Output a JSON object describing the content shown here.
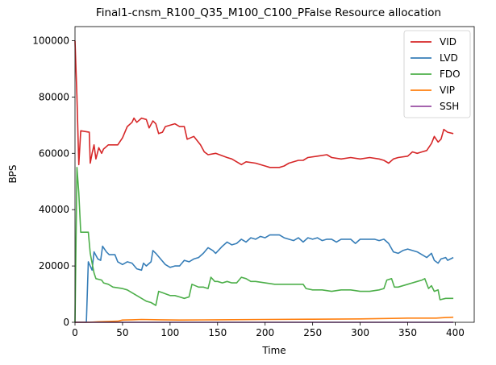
{
  "chart_data": {
    "type": "line",
    "title": "Final1-cnsm_R100_Q35_M100_C100_PFalse Resource allocation",
    "xlabel": "Time",
    "ylabel": "BPS",
    "xlim": [
      0,
      420
    ],
    "ylim": [
      0,
      105000
    ],
    "xticks": [
      0,
      50,
      100,
      150,
      200,
      250,
      300,
      350,
      400
    ],
    "yticks": [
      0,
      20000,
      40000,
      60000,
      80000,
      100000
    ],
    "grid": false,
    "legend_position": "top-right",
    "series": [
      {
        "name": "VID",
        "color": "#d62728",
        "points": [
          [
            0,
            100000
          ],
          [
            2,
            80000
          ],
          [
            4,
            56000
          ],
          [
            6,
            68000
          ],
          [
            15,
            67500
          ],
          [
            16,
            56500
          ],
          [
            18,
            60000
          ],
          [
            20,
            63000
          ],
          [
            22,
            58000
          ],
          [
            25,
            62000
          ],
          [
            28,
            60000
          ],
          [
            30,
            61500
          ],
          [
            35,
            63000
          ],
          [
            45,
            63000
          ],
          [
            50,
            65500
          ],
          [
            55,
            69500
          ],
          [
            60,
            71000
          ],
          [
            62,
            72500
          ],
          [
            65,
            71000
          ],
          [
            70,
            72500
          ],
          [
            75,
            72000
          ],
          [
            78,
            69000
          ],
          [
            82,
            71500
          ],
          [
            85,
            70500
          ],
          [
            88,
            67000
          ],
          [
            92,
            67500
          ],
          [
            95,
            69500
          ],
          [
            105,
            70500
          ],
          [
            110,
            69500
          ],
          [
            115,
            69500
          ],
          [
            118,
            65000
          ],
          [
            125,
            66000
          ],
          [
            132,
            63000
          ],
          [
            136,
            60500
          ],
          [
            140,
            59500
          ],
          [
            148,
            60000
          ],
          [
            160,
            58500
          ],
          [
            165,
            58000
          ],
          [
            170,
            57000
          ],
          [
            175,
            56000
          ],
          [
            180,
            57000
          ],
          [
            190,
            56500
          ],
          [
            200,
            55500
          ],
          [
            205,
            55000
          ],
          [
            215,
            55000
          ],
          [
            220,
            55500
          ],
          [
            225,
            56500
          ],
          [
            235,
            57500
          ],
          [
            240,
            57500
          ],
          [
            245,
            58500
          ],
          [
            255,
            59000
          ],
          [
            265,
            59500
          ],
          [
            270,
            58500
          ],
          [
            280,
            58000
          ],
          [
            290,
            58500
          ],
          [
            300,
            58000
          ],
          [
            310,
            58500
          ],
          [
            320,
            58000
          ],
          [
            325,
            57500
          ],
          [
            330,
            56500
          ],
          [
            335,
            58000
          ],
          [
            340,
            58500
          ],
          [
            350,
            59000
          ],
          [
            355,
            60500
          ],
          [
            360,
            60000
          ],
          [
            365,
            60500
          ],
          [
            370,
            61000
          ],
          [
            375,
            63500
          ],
          [
            378,
            66000
          ],
          [
            382,
            64000
          ],
          [
            385,
            65000
          ],
          [
            388,
            68500
          ],
          [
            392,
            67500
          ],
          [
            398,
            67000
          ]
        ]
      },
      {
        "name": "LVD",
        "color": "#377eb8",
        "points": [
          [
            0,
            0
          ],
          [
            12,
            0
          ],
          [
            14,
            21500
          ],
          [
            18,
            18500
          ],
          [
            20,
            25000
          ],
          [
            24,
            22500
          ],
          [
            27,
            22000
          ],
          [
            29,
            27000
          ],
          [
            33,
            25000
          ],
          [
            36,
            24000
          ],
          [
            42,
            24000
          ],
          [
            45,
            21500
          ],
          [
            50,
            20500
          ],
          [
            55,
            21500
          ],
          [
            60,
            21000
          ],
          [
            65,
            19000
          ],
          [
            70,
            18500
          ],
          [
            72,
            21000
          ],
          [
            75,
            20000
          ],
          [
            80,
            21500
          ],
          [
            82,
            25500
          ],
          [
            85,
            24500
          ],
          [
            90,
            22500
          ],
          [
            95,
            20500
          ],
          [
            100,
            19500
          ],
          [
            105,
            20000
          ],
          [
            110,
            20000
          ],
          [
            115,
            22000
          ],
          [
            120,
            21500
          ],
          [
            125,
            22500
          ],
          [
            130,
            23000
          ],
          [
            135,
            24500
          ],
          [
            140,
            26500
          ],
          [
            145,
            25500
          ],
          [
            148,
            24500
          ],
          [
            155,
            27000
          ],
          [
            160,
            28500
          ],
          [
            165,
            27500
          ],
          [
            170,
            28000
          ],
          [
            175,
            29500
          ],
          [
            180,
            28500
          ],
          [
            185,
            30000
          ],
          [
            190,
            29500
          ],
          [
            195,
            30500
          ],
          [
            200,
            30000
          ],
          [
            205,
            31000
          ],
          [
            215,
            31000
          ],
          [
            220,
            30000
          ],
          [
            225,
            29500
          ],
          [
            230,
            29000
          ],
          [
            235,
            30000
          ],
          [
            240,
            28500
          ],
          [
            245,
            30000
          ],
          [
            250,
            29500
          ],
          [
            255,
            30000
          ],
          [
            260,
            29000
          ],
          [
            265,
            29500
          ],
          [
            270,
            29500
          ],
          [
            275,
            28500
          ],
          [
            280,
            29500
          ],
          [
            290,
            29500
          ],
          [
            295,
            28000
          ],
          [
            300,
            29500
          ],
          [
            315,
            29500
          ],
          [
            320,
            29000
          ],
          [
            325,
            29500
          ],
          [
            330,
            28000
          ],
          [
            335,
            25000
          ],
          [
            340,
            24500
          ],
          [
            345,
            25500
          ],
          [
            350,
            26000
          ],
          [
            355,
            25500
          ],
          [
            360,
            25000
          ],
          [
            365,
            24000
          ],
          [
            370,
            23000
          ],
          [
            375,
            24500
          ],
          [
            378,
            22000
          ],
          [
            382,
            21000
          ],
          [
            385,
            22500
          ],
          [
            390,
            23000
          ],
          [
            392,
            22000
          ],
          [
            398,
            23000
          ]
        ]
      },
      {
        "name": "FDO",
        "color": "#4daf4a",
        "points": [
          [
            0,
            0
          ],
          [
            2,
            55000
          ],
          [
            4,
            46000
          ],
          [
            6,
            32000
          ],
          [
            14,
            32000
          ],
          [
            16,
            24500
          ],
          [
            18,
            21000
          ],
          [
            20,
            17500
          ],
          [
            22,
            15500
          ],
          [
            28,
            15000
          ],
          [
            30,
            14000
          ],
          [
            35,
            13500
          ],
          [
            40,
            12500
          ],
          [
            50,
            12000
          ],
          [
            55,
            11500
          ],
          [
            60,
            10500
          ],
          [
            65,
            9500
          ],
          [
            70,
            8500
          ],
          [
            75,
            7500
          ],
          [
            80,
            7000
          ],
          [
            85,
            6000
          ],
          [
            88,
            11000
          ],
          [
            92,
            10500
          ],
          [
            96,
            10000
          ],
          [
            100,
            9500
          ],
          [
            105,
            9500
          ],
          [
            110,
            9000
          ],
          [
            115,
            8500
          ],
          [
            120,
            9000
          ],
          [
            123,
            13500
          ],
          [
            130,
            12500
          ],
          [
            135,
            12500
          ],
          [
            140,
            12000
          ],
          [
            143,
            16000
          ],
          [
            147,
            14500
          ],
          [
            150,
            14500
          ],
          [
            155,
            14000
          ],
          [
            160,
            14500
          ],
          [
            165,
            14000
          ],
          [
            170,
            14000
          ],
          [
            175,
            16000
          ],
          [
            180,
            15500
          ],
          [
            185,
            14500
          ],
          [
            190,
            14500
          ],
          [
            200,
            14000
          ],
          [
            210,
            13500
          ],
          [
            220,
            13500
          ],
          [
            230,
            13500
          ],
          [
            240,
            13500
          ],
          [
            243,
            12000
          ],
          [
            250,
            11500
          ],
          [
            260,
            11500
          ],
          [
            270,
            11000
          ],
          [
            280,
            11500
          ],
          [
            290,
            11500
          ],
          [
            300,
            11000
          ],
          [
            310,
            11000
          ],
          [
            320,
            11500
          ],
          [
            325,
            12000
          ],
          [
            328,
            15000
          ],
          [
            333,
            15500
          ],
          [
            336,
            12500
          ],
          [
            340,
            12500
          ],
          [
            350,
            13500
          ],
          [
            360,
            14500
          ],
          [
            365,
            15000
          ],
          [
            368,
            15500
          ],
          [
            372,
            12000
          ],
          [
            375,
            13000
          ],
          [
            378,
            11000
          ],
          [
            382,
            11500
          ],
          [
            384,
            8000
          ],
          [
            390,
            8500
          ],
          [
            398,
            8500
          ]
        ]
      },
      {
        "name": "VIP",
        "color": "#ff7f0e",
        "points": [
          [
            0,
            0
          ],
          [
            15,
            0
          ],
          [
            25,
            200
          ],
          [
            45,
            400
          ],
          [
            50,
            800
          ],
          [
            60,
            900
          ],
          [
            70,
            1000
          ],
          [
            90,
            900
          ],
          [
            110,
            800
          ],
          [
            150,
            900
          ],
          [
            200,
            1000
          ],
          [
            250,
            1100
          ],
          [
            300,
            1200
          ],
          [
            340,
            1400
          ],
          [
            350,
            1500
          ],
          [
            380,
            1500
          ],
          [
            390,
            1700
          ],
          [
            398,
            1800
          ]
        ]
      },
      {
        "name": "SSH",
        "color": "#984ea3",
        "points": [
          [
            0,
            0
          ],
          [
            100,
            0
          ],
          [
            200,
            0
          ],
          [
            300,
            0
          ],
          [
            398,
            0
          ]
        ]
      }
    ]
  }
}
